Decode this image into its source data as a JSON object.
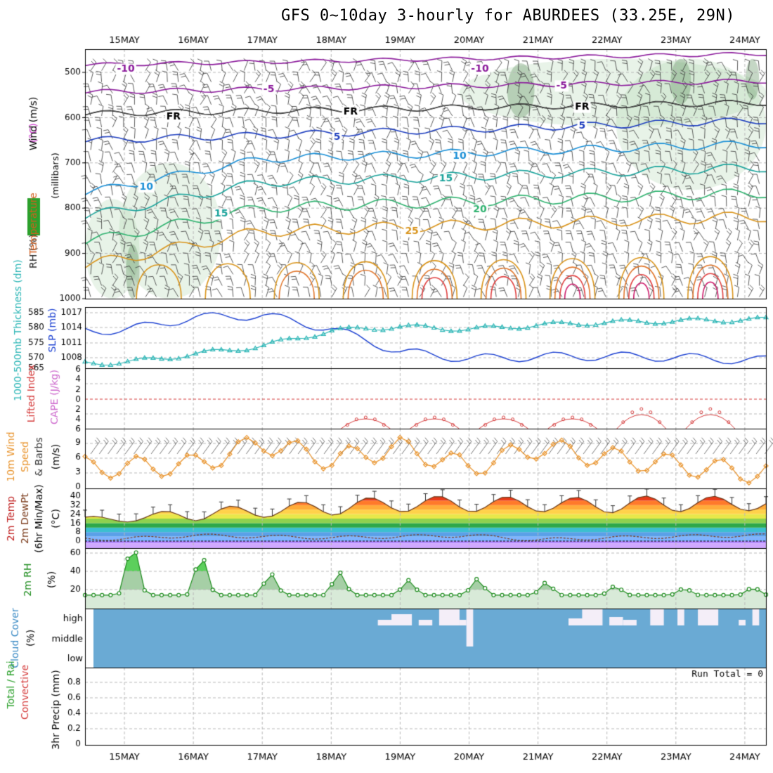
{
  "title": "GFS 0~10day 3-hourly for ABURDEES (33.25E, 29N)",
  "dates": [
    "15MAY",
    "16MAY",
    "17MAY",
    "18MAY",
    "19MAY",
    "20MAY",
    "21MAY",
    "22MAY",
    "23MAY",
    "24MAY"
  ],
  "run_total": "Run Total = 0",
  "panels": {
    "upper": {
      "ylabel_parts": [
        {
          "text": "RH (%)",
          "color": "#2a2a2a",
          "bg": "#2ca02c"
        },
        {
          "text": "Temperature",
          "color": "#d45f1e"
        },
        {
          "text": "(°C)",
          "color": "#cc33cc"
        },
        {
          "text": "Wind (m/s)",
          "color": "#000000"
        }
      ],
      "ylabel2": "(millibars)",
      "ticks": [
        "500",
        "600",
        "700",
        "800",
        "900",
        "1000"
      ],
      "contour_labels": [
        {
          "text": "-10",
          "color": "#8b1a9b",
          "x": 0.06,
          "p": 493
        },
        {
          "text": "-10",
          "color": "#8b1a9b",
          "x": 0.58,
          "p": 493
        },
        {
          "text": "-5",
          "color": "#8b1a9b",
          "x": 0.27,
          "p": 538
        },
        {
          "text": "-5",
          "color": "#8b1a9b",
          "x": 0.7,
          "p": 530
        },
        {
          "text": "FR",
          "color": "#000000",
          "x": 0.13,
          "p": 598
        },
        {
          "text": "FR",
          "color": "#000000",
          "x": 0.39,
          "p": 588
        },
        {
          "text": "FR",
          "color": "#000000",
          "x": 0.73,
          "p": 577
        },
        {
          "text": "5",
          "color": "#1f3fbf",
          "x": 0.37,
          "p": 643
        },
        {
          "text": "5",
          "color": "#1f3fbf",
          "x": 0.73,
          "p": 618
        },
        {
          "text": "10",
          "color": "#1a8fd6",
          "x": 0.09,
          "p": 753
        },
        {
          "text": "10",
          "color": "#1a8fd6",
          "x": 0.55,
          "p": 685
        },
        {
          "text": "15",
          "color": "#1aa39b",
          "x": 0.2,
          "p": 813
        },
        {
          "text": "15",
          "color": "#1aa39b",
          "x": 0.53,
          "p": 735
        },
        {
          "text": "20",
          "color": "#2fb26f",
          "x": 0.58,
          "p": 804
        },
        {
          "text": "25",
          "color": "#d9941b",
          "x": 0.48,
          "p": 852
        }
      ]
    },
    "slp": {
      "ylabel_left": "1000-500mb Thickness (dm)",
      "ylabel_right": "SLP (mb)",
      "left_ticks": [
        "565",
        "570",
        "575",
        "580",
        "585"
      ],
      "right_ticks": [
        "1008",
        "1011",
        "1014",
        "1017"
      ]
    },
    "cape": {
      "ylabel_a": "Lifted Index",
      "ylabel_b": "CAPE (J/kg)",
      "ticks": [
        "6",
        "4",
        "2",
        "0",
        "2",
        "4",
        "6"
      ]
    },
    "wind": {
      "ylabel_a": "10m Wind",
      "ylabel_b": "Speed",
      "ylabel_c": "& Barbs",
      "ylabel_d": "(m/s)",
      "ticks": [
        "0",
        "3",
        "6",
        "9"
      ]
    },
    "temp": {
      "ylabel_a": "2m Temp",
      "ylabel_b": "2m DewPt",
      "ylabel_c": "(6hr Min/Max)",
      "ylabel_d": "(°C)",
      "ticks": [
        "0",
        "8",
        "16",
        "24",
        "32",
        "40"
      ]
    },
    "rh": {
      "ylabel_a": "2m RH",
      "ylabel_b": "(%)",
      "ticks": [
        "20",
        "40",
        "60"
      ]
    },
    "cloud": {
      "ylabel_a": "Cloud Cover",
      "ylabel_b": "(%)",
      "levels": [
        "high",
        "middle",
        "low"
      ]
    },
    "precip": {
      "ylabel_a": "Total / Rain",
      "ylabel_b": "Convective",
      "ylabel_c": "3hr Precip (mm)",
      "ticks": [
        "0",
        "0.2",
        "0.4",
        "0.6",
        "0.8"
      ]
    }
  },
  "colors": {
    "slp": "#1a3fd1",
    "thickness": "#2ab5b5",
    "lifted": "#d43a3a",
    "wind": "#e8922a",
    "rh": "#1e8c1e",
    "cloud": "#6aaad4"
  },
  "chart_data": [
    {
      "type": "line",
      "title": "SLP (mb)",
      "x": [
        "15MAY",
        "16MAY",
        "17MAY",
        "18MAY",
        "19MAY",
        "20MAY",
        "21MAY",
        "22MAY",
        "23MAY",
        "24MAY"
      ],
      "series": [
        {
          "name": "SLP (mb)",
          "values": [
            1013.5,
            1016.0,
            1016.5,
            1013.8,
            1009.2,
            1007.8,
            1008.2,
            1008.3,
            1008.1,
            1007.5
          ]
        },
        {
          "name": "1000-500mb Thickness (dm)",
          "values": [
            567.0,
            570.0,
            573.0,
            578.5,
            580.0,
            579.0,
            580.5,
            581.5,
            582.0,
            582.5
          ]
        }
      ],
      "ylim": [
        1005,
        1018
      ]
    },
    {
      "type": "line",
      "title": "10m Wind Speed (m/s)",
      "x": [
        "15MAY",
        "16MAY",
        "17MAY",
        "18MAY",
        "19MAY",
        "20MAY",
        "21MAY",
        "22MAY",
        "23MAY",
        "24MAY"
      ],
      "series": [
        {
          "name": "10m Wind Speed",
          "values": [
            4.0,
            4.5,
            9.0,
            5.5,
            8.0,
            4.0,
            8.0,
            6.0,
            4.5,
            3.0
          ]
        }
      ],
      "ylim": [
        0,
        10
      ]
    },
    {
      "type": "area",
      "title": "2m Temp (°C)",
      "x": [
        "15MAY",
        "16MAY",
        "17MAY",
        "18MAY",
        "19MAY",
        "20MAY",
        "21MAY",
        "22MAY",
        "23MAY",
        "24MAY"
      ],
      "series": [
        {
          "name": "2m Temp max",
          "values": [
            22,
            30,
            32,
            37,
            40,
            40,
            39,
            39,
            41,
            39
          ]
        },
        {
          "name": "2m Temp min",
          "values": [
            17,
            18,
            21,
            23,
            26,
            26,
            26,
            25,
            26,
            27
          ]
        },
        {
          "name": "2m DewPt",
          "values": [
            2,
            5,
            4,
            3,
            4,
            5,
            1,
            3,
            4,
            5
          ]
        }
      ],
      "ylim": [
        -2,
        42
      ]
    },
    {
      "type": "area",
      "title": "2m RH (%)",
      "x": [
        "15MAY",
        "16MAY",
        "17MAY",
        "18MAY",
        "19MAY",
        "20MAY",
        "21MAY",
        "22MAY",
        "23MAY",
        "24MAY"
      ],
      "series": [
        {
          "name": "2m RH",
          "values": [
            70,
            59,
            37,
            40,
            30,
            32,
            28,
            24,
            21,
            22
          ]
        }
      ],
      "ylim": [
        0,
        75
      ]
    },
    {
      "type": "line",
      "title": "Lifted Index",
      "x": [
        "18.5MAY",
        "19.5MAY",
        "20.5MAY",
        "21.5MAY",
        "22.5MAY",
        "23.5MAY"
      ],
      "series": [
        {
          "name": "Lifted Index",
          "values": [
            6.0,
            3.5,
            4.0,
            4.0,
            2.5,
            2.5
          ]
        }
      ],
      "ylim": [
        6,
        -6
      ]
    }
  ]
}
